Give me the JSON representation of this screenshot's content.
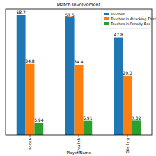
{
  "chart_data": {
    "type": "bar",
    "title": "Match Involvement",
    "x_label": "Player Name",
    "categories": [
      "Foden",
      "Grealish",
      "Sterling"
    ],
    "series": [
      {
        "name": "Touches",
        "color": "#1f77b4",
        "values": [
          58.7,
          57.5,
          47.8
        ],
        "value_labels": [
          "58.7",
          "57.5",
          "47.8"
        ]
      },
      {
        "name": "Touches in Attacking Third",
        "color": "#ff7f0e",
        "values": [
          34.8,
          34.4,
          29.0
        ],
        "value_labels": [
          "34.8",
          "34.4",
          "29.0"
        ]
      },
      {
        "name": "Touches in Penalty Box",
        "color": "#2ca02c",
        "values": [
          5.94,
          6.91,
          7.02
        ],
        "value_labels": [
          "5.94",
          "6.91",
          "7.02"
        ]
      }
    ],
    "ylim": [
      0,
      61.6
    ],
    "legend": "upper right",
    "data_labels": true,
    "tick_labels": "x",
    "grid": false
  }
}
